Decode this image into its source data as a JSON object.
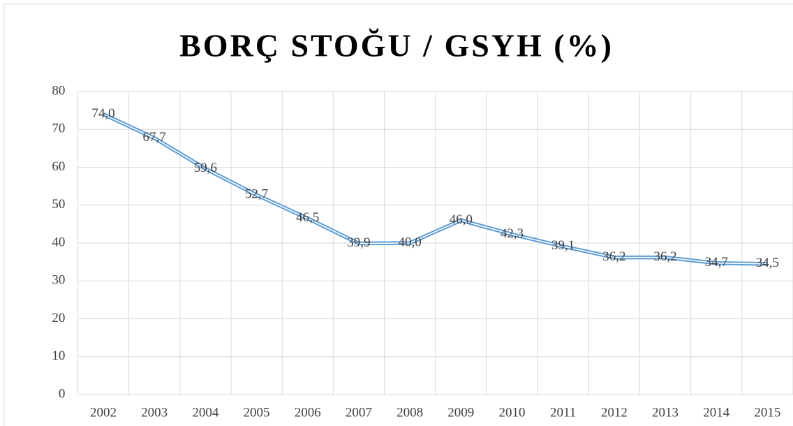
{
  "chart_data": {
    "type": "line",
    "title": "BORÇ STOĞU / GSYH (%)",
    "categories": [
      "2002",
      "2003",
      "2004",
      "2005",
      "2006",
      "2007",
      "2008",
      "2009",
      "2010",
      "2011",
      "2012",
      "2013",
      "2014",
      "2015"
    ],
    "values": [
      74.0,
      67.7,
      59.6,
      52.7,
      46.5,
      39.9,
      40.0,
      46.0,
      42.3,
      39.1,
      36.2,
      36.2,
      34.7,
      34.5
    ],
    "value_labels": [
      "74,0",
      "67,7",
      "59,6",
      "52,7",
      "46,5",
      "39,9",
      "40,0",
      "46,0",
      "42,3",
      "39,1",
      "36,2",
      "36,2",
      "34,7",
      "34,5"
    ],
    "color": "#5b9bd5",
    "ylim": [
      0,
      80
    ],
    "yticks": [
      0,
      10,
      20,
      30,
      40,
      50,
      60,
      70,
      80
    ],
    "grid": true
  }
}
